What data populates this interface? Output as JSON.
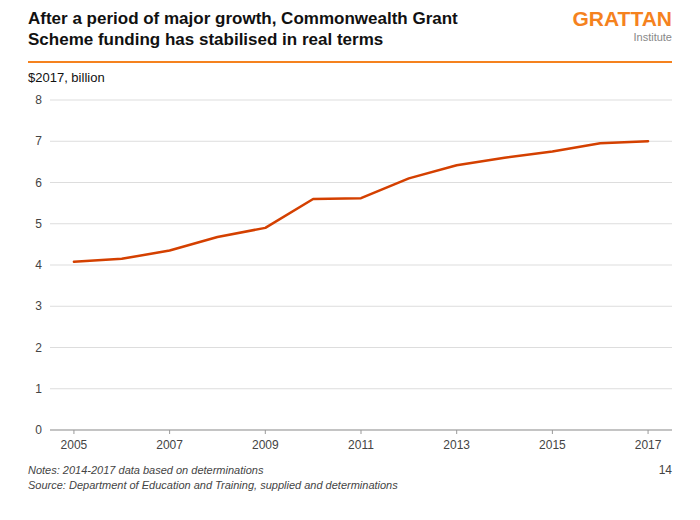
{
  "chart_data": {
    "type": "line",
    "title": "After a period of major growth, Commonwealth Grant\nScheme funding has stabilised in real terms",
    "subtitle": "$2017, billion",
    "annotations": [
      "GRATTAN",
      "Institute",
      "Notes: 2014-2017 data based on determinations\nSource: Department of Education and Training, supplied and determinations",
      "14"
    ],
    "x": [
      2005,
      2006,
      2007,
      2008,
      2009,
      2010,
      2011,
      2012,
      2013,
      2014,
      2015,
      2016,
      2017
    ],
    "values": [
      4.08,
      4.15,
      4.35,
      4.68,
      4.9,
      5.6,
      5.62,
      6.1,
      6.42,
      6.6,
      6.75,
      6.95,
      7.0
    ],
    "color": "#D44000",
    "xlim": [
      2004.5,
      2017.5
    ],
    "xticks": [
      2005,
      2007,
      2009,
      2011,
      2013,
      2015,
      2017
    ],
    "ylim": [
      0,
      8
    ],
    "yticks": [
      0,
      1,
      2,
      3,
      4,
      5,
      6,
      7,
      8
    ],
    "grid": true
  }
}
